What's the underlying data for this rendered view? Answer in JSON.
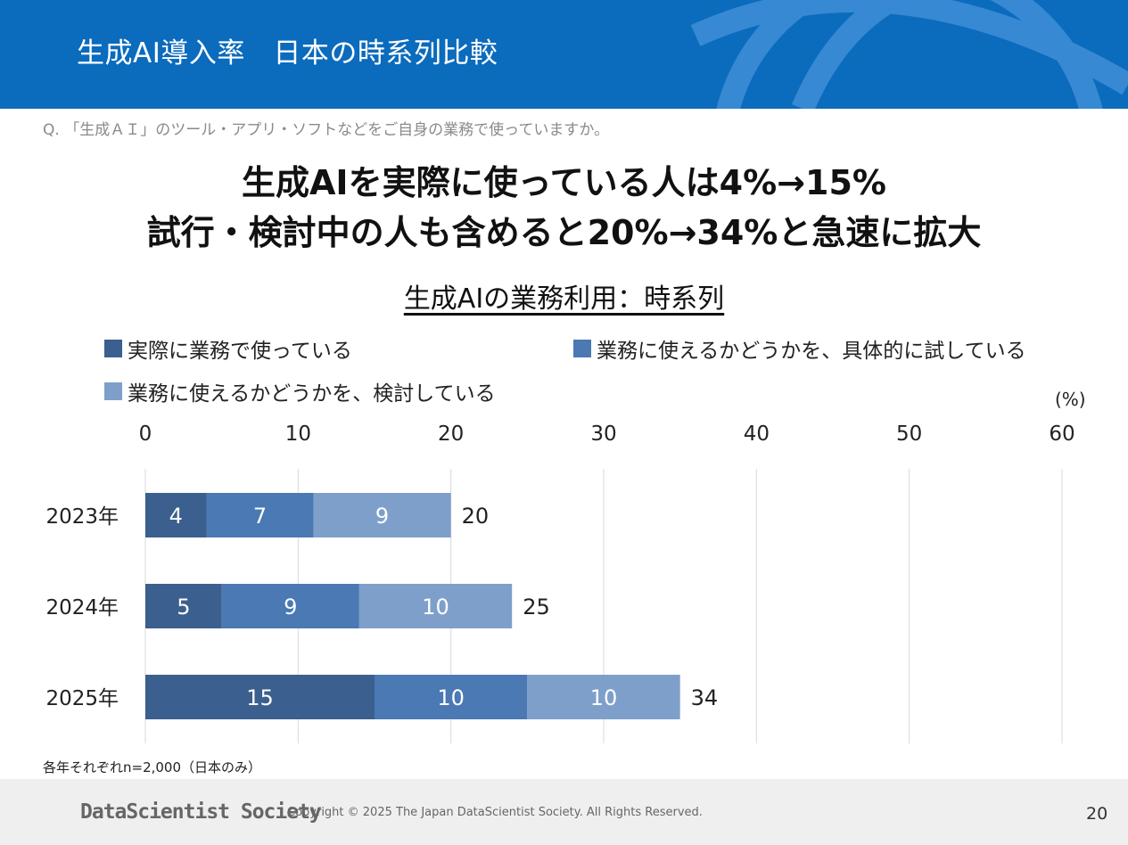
{
  "header": {
    "title": "生成AI導入率　日本の時系列比較"
  },
  "question": "Q. 「生成ＡＩ」のツール・アプリ・ソフトなどをご自身の業務で使っていますか。",
  "headline": {
    "line1": "生成AIを実際に使っている人は4%→15%",
    "line2": "試行・検討中の人も含めると20%→34%と急速に拡大"
  },
  "colors": {
    "header_bg": "#0b6bbd",
    "series": [
      "#3b5f8e",
      "#4a79b4",
      "#7f9fcb"
    ]
  },
  "chart_data": {
    "type": "bar",
    "orientation": "horizontal",
    "stacked": true,
    "title": "生成AIの業務利用：時系列",
    "unit_label": "(%)",
    "categories": [
      "2023年",
      "2024年",
      "2025年"
    ],
    "series": [
      {
        "name": "実際に業務で使っている",
        "values": [
          4,
          5,
          15
        ],
        "labels": [
          "4",
          "5",
          "15"
        ]
      },
      {
        "name": "業務に使えるかどうかを、具体的に試している",
        "values": [
          7,
          9,
          10
        ],
        "labels": [
          "7",
          "9",
          "10"
        ]
      },
      {
        "name": "業務に使えるかどうかを、検討している",
        "values": [
          9,
          10,
          10
        ],
        "labels": [
          "9",
          "10",
          "10"
        ]
      }
    ],
    "totals": [
      "20",
      "25",
      "34"
    ],
    "xlim": [
      0,
      60
    ],
    "xticks": [
      "0",
      "10",
      "20",
      "30",
      "40",
      "50",
      "60"
    ],
    "grid": true,
    "legend_position": "top"
  },
  "note": "各年それぞれn=2,000（日本のみ）",
  "footer": {
    "brand": "DataScientist Society",
    "copyright": "Copyright © 2025 The Japan DataScientist Society. All Rights Reserved.",
    "page_number": "20"
  }
}
